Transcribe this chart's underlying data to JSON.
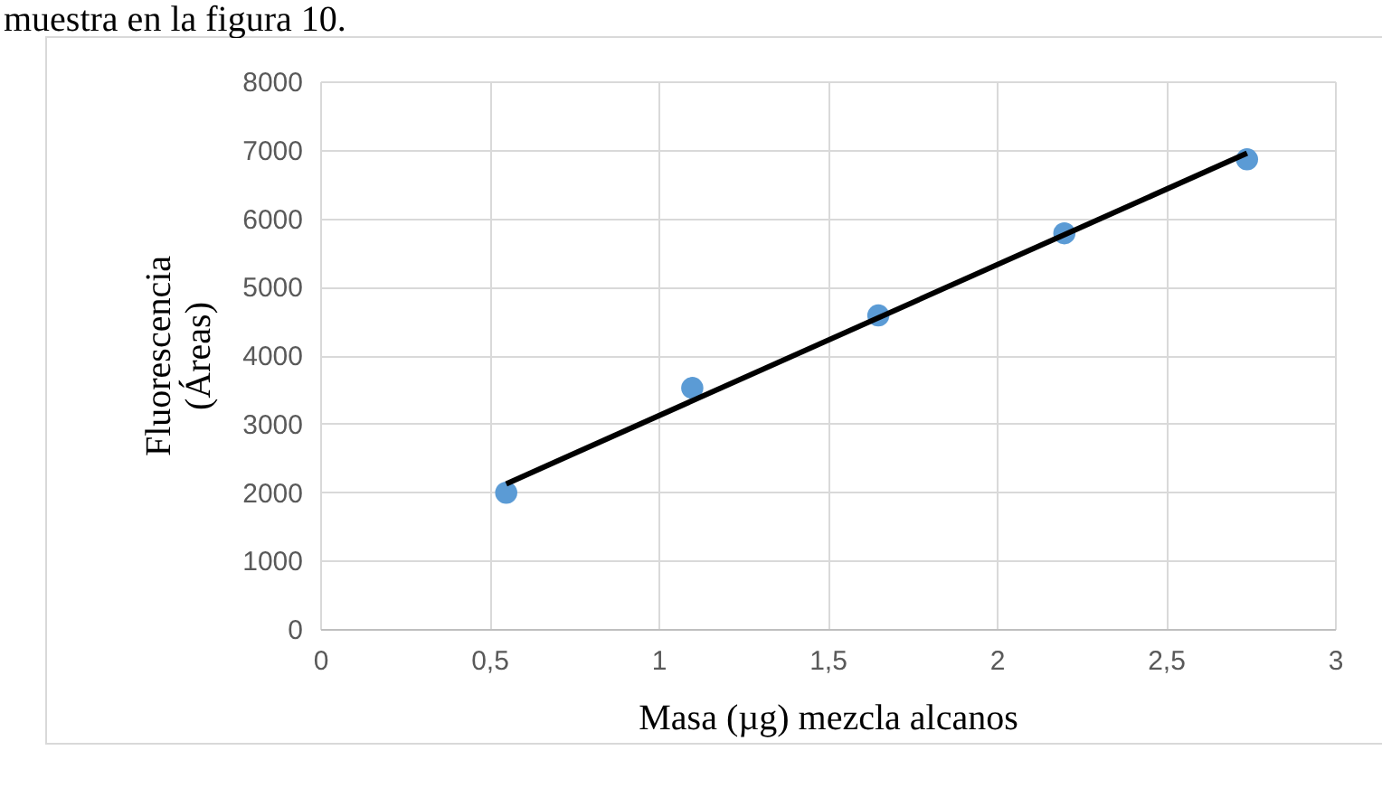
{
  "chart_data": {
    "type": "scatter",
    "xlabel": "Masa (µg) mezcla alcanos",
    "ylabel": "Fluorescencia\n(Áreas)",
    "annotations": [
      "muestra en la figura 10."
    ],
    "x": [
      0.55,
      1.1,
      1.65,
      2.2,
      2.74
    ],
    "series": [
      {
        "color": "#5b9bd5",
        "marker": "circle",
        "values": [
          1990,
          3520,
          4580,
          5780,
          6860
        ]
      },
      {
        "type": "line",
        "color": "#000000",
        "marker": "none",
        "x": [
          0.55,
          2.74
        ],
        "values": [
          2120,
          6950
        ]
      }
    ],
    "xlim": [
      0,
      3
    ],
    "xticks": [
      0,
      {
        "value": 0.5,
        "label": "0,5"
      },
      1,
      {
        "value": 1.5,
        "label": "1,5"
      },
      2,
      {
        "value": 2.5,
        "label": "2,5"
      },
      3
    ],
    "ylim": [
      0,
      8000
    ],
    "yticks": [
      0,
      1000,
      2000,
      3000,
      4000,
      5000,
      6000,
      7000,
      8000
    ],
    "grid": true
  }
}
